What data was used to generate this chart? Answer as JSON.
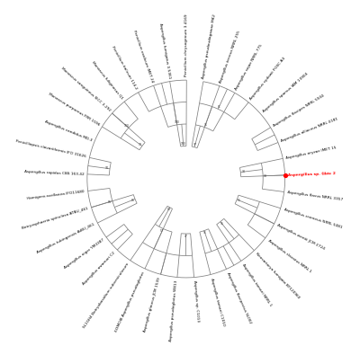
{
  "background_color": "#ffffff",
  "tree_color": "#7f7f7f",
  "label_color": "#000000",
  "highlight_color": "#ff0000",
  "highlight_taxon": "Aspergillus sp. Gbtc 2",
  "fig_width": 4.0,
  "fig_height": 3.95,
  "taxa": [
    "Aspergillus pseudoudagawae MK2",
    "Aspergillus terreus NRRL 255",
    "Aspergillus sojae NRRL 775",
    "Aspergillus sydowii FGSC A4",
    "Aspergillus sparsus IAM 13904",
    "Aspergillus flavipes NRRL 5504",
    "Aspergillus alliaceus NRRL 4181",
    "Aspergillus oryzae IMET 15",
    "Aspergillus sp. Gbtc 2",
    "Aspergillus flavus NRRL 3357",
    "Aspergillus cremeus NRRL 5081",
    "Aspergillus wentii JCM 2724",
    "Aspergillus clavatus NRRL 1",
    "Neosartorya fumigata BY120960",
    "Aspergillus tamarii NRRL 1",
    "Aspergillus flavipectus SL002",
    "Aspergillus tamarii C1010",
    "Aspergillus sp. C1013",
    "Aspergillus pseudogliotus W813",
    "Aspergillus glaucus JCM 1539",
    "6I3MOI8 Aspergillus pseudogliotus",
    "SL1GH4 Botryobasidium subvesiculosum",
    "Aspergillus awamori C2",
    "Aspergillus niger YM3387",
    "Aspergillus tubingensis AtBU_461",
    "Botryosphaeria spinulosa ATBU_461",
    "Hamigera avellanea IFO11680",
    "Aspergillus rapidus CBS 163.42",
    "Penicilliopsis clavariiformis IFO 31626",
    "Aspergillus candidus MD-3",
    "Monascus purpureus FRR 1596",
    "Monascus sanguineus SICC 3.292",
    "Monascus fuliginosus Q1",
    "Penicillium italicum 114-2",
    "Penicillium oxalicum IMET 24",
    "Aspergillus fumigatus 3.5361",
    "Penicillium chrysogenum 3.4169"
  ]
}
